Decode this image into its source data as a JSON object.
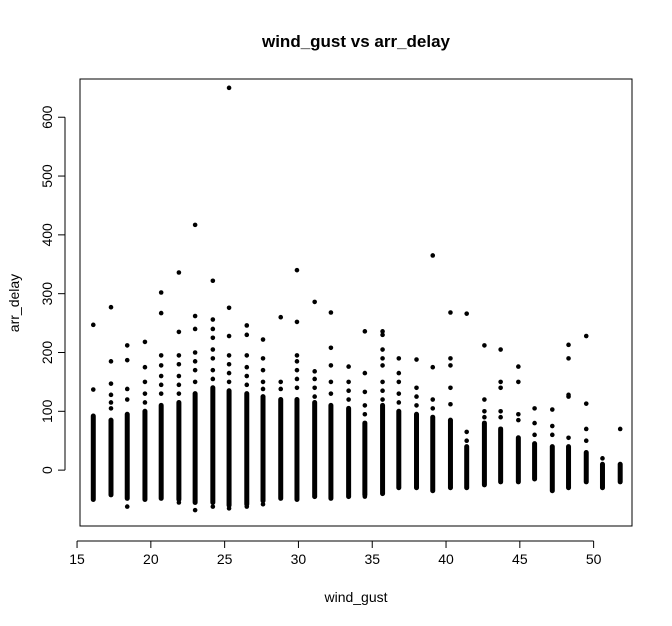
{
  "chart_data": {
    "type": "scatter",
    "title": "wind_gust vs arr_delay",
    "xlabel": "wind_gust",
    "ylabel": "arr_delay",
    "xlim": [
      15.2,
      52.6
    ],
    "ylim": [
      -95,
      665
    ],
    "x_ticks": [
      15,
      20,
      25,
      30,
      35,
      40,
      45,
      50
    ],
    "y_ticks": [
      0,
      100,
      200,
      300,
      400,
      500,
      600
    ],
    "grid": false,
    "point_color": "#000000",
    "columns": [
      {
        "x": 16.1,
        "min": -50,
        "max": 92
      },
      {
        "x": 17.3,
        "min": -42,
        "max": 85
      },
      {
        "x": 18.4,
        "min": -48,
        "max": 95
      },
      {
        "x": 19.6,
        "min": -50,
        "max": 100
      },
      {
        "x": 20.7,
        "min": -48,
        "max": 110
      },
      {
        "x": 21.9,
        "min": -50,
        "max": 115
      },
      {
        "x": 23.0,
        "min": -55,
        "max": 130
      },
      {
        "x": 24.2,
        "min": -55,
        "max": 140
      },
      {
        "x": 25.3,
        "min": -60,
        "max": 135
      },
      {
        "x": 26.5,
        "min": -58,
        "max": 130
      },
      {
        "x": 27.6,
        "min": -52,
        "max": 125
      },
      {
        "x": 28.8,
        "min": -48,
        "max": 120
      },
      {
        "x": 29.9,
        "min": -50,
        "max": 120
      },
      {
        "x": 31.1,
        "min": -45,
        "max": 115
      },
      {
        "x": 32.2,
        "min": -48,
        "max": 110
      },
      {
        "x": 33.4,
        "min": -45,
        "max": 105
      },
      {
        "x": 34.5,
        "min": -42,
        "max": 80
      },
      {
        "x": 35.7,
        "min": -40,
        "max": 110
      },
      {
        "x": 36.8,
        "min": -30,
        "max": 100
      },
      {
        "x": 38.0,
        "min": -30,
        "max": 95
      },
      {
        "x": 39.1,
        "min": -35,
        "max": 90
      },
      {
        "x": 40.3,
        "min": -30,
        "max": 85
      },
      {
        "x": 41.4,
        "min": -30,
        "max": 40
      },
      {
        "x": 42.6,
        "min": -25,
        "max": 80
      },
      {
        "x": 43.7,
        "min": -20,
        "max": 70
      },
      {
        "x": 44.9,
        "min": -20,
        "max": 55
      },
      {
        "x": 46.0,
        "min": -15,
        "max": 45
      },
      {
        "x": 47.2,
        "min": -35,
        "max": 40
      },
      {
        "x": 48.3,
        "min": -30,
        "max": 40
      },
      {
        "x": 49.5,
        "min": -20,
        "max": 30
      },
      {
        "x": 50.6,
        "min": -30,
        "max": 10
      },
      {
        "x": 51.8,
        "min": -20,
        "max": 10
      }
    ],
    "outliers": [
      {
        "x": 16.1,
        "y": 247
      },
      {
        "x": 16.1,
        "y": 137
      },
      {
        "x": 17.3,
        "y": 277
      },
      {
        "x": 17.3,
        "y": 185
      },
      {
        "x": 17.3,
        "y": 147
      },
      {
        "x": 17.3,
        "y": 128
      },
      {
        "x": 17.3,
        "y": 115
      },
      {
        "x": 17.3,
        "y": 105
      },
      {
        "x": 18.4,
        "y": 212
      },
      {
        "x": 18.4,
        "y": 187
      },
      {
        "x": 18.4,
        "y": 138
      },
      {
        "x": 18.4,
        "y": 120
      },
      {
        "x": 18.4,
        "y": -62
      },
      {
        "x": 19.6,
        "y": 218
      },
      {
        "x": 19.6,
        "y": 175
      },
      {
        "x": 19.6,
        "y": 150
      },
      {
        "x": 19.6,
        "y": 130
      },
      {
        "x": 19.6,
        "y": 115
      },
      {
        "x": 20.7,
        "y": 302
      },
      {
        "x": 20.7,
        "y": 267
      },
      {
        "x": 20.7,
        "y": 195
      },
      {
        "x": 20.7,
        "y": 178
      },
      {
        "x": 20.7,
        "y": 160
      },
      {
        "x": 20.7,
        "y": 145
      },
      {
        "x": 20.7,
        "y": 130
      },
      {
        "x": 21.9,
        "y": 336
      },
      {
        "x": 21.9,
        "y": 235
      },
      {
        "x": 21.9,
        "y": 195
      },
      {
        "x": 21.9,
        "y": 180
      },
      {
        "x": 21.9,
        "y": 160
      },
      {
        "x": 21.9,
        "y": 145
      },
      {
        "x": 21.9,
        "y": 130
      },
      {
        "x": 21.9,
        "y": -55
      },
      {
        "x": 23.0,
        "y": 417
      },
      {
        "x": 23.0,
        "y": 262
      },
      {
        "x": 23.0,
        "y": 240
      },
      {
        "x": 23.0,
        "y": 200
      },
      {
        "x": 23.0,
        "y": 185
      },
      {
        "x": 23.0,
        "y": 170
      },
      {
        "x": 23.0,
        "y": 150
      },
      {
        "x": 23.0,
        "y": -68
      },
      {
        "x": 24.2,
        "y": 322
      },
      {
        "x": 24.2,
        "y": 256
      },
      {
        "x": 24.2,
        "y": 240
      },
      {
        "x": 24.2,
        "y": 225
      },
      {
        "x": 24.2,
        "y": 205
      },
      {
        "x": 24.2,
        "y": 190
      },
      {
        "x": 24.2,
        "y": 170
      },
      {
        "x": 24.2,
        "y": 155
      },
      {
        "x": 24.2,
        "y": -62
      },
      {
        "x": 25.3,
        "y": 650
      },
      {
        "x": 25.3,
        "y": 276
      },
      {
        "x": 25.3,
        "y": 228
      },
      {
        "x": 25.3,
        "y": 195
      },
      {
        "x": 25.3,
        "y": 180
      },
      {
        "x": 25.3,
        "y": 165
      },
      {
        "x": 25.3,
        "y": 150
      },
      {
        "x": 25.3,
        "y": -65
      },
      {
        "x": 26.5,
        "y": 246
      },
      {
        "x": 26.5,
        "y": 230
      },
      {
        "x": 26.5,
        "y": 195
      },
      {
        "x": 26.5,
        "y": 175
      },
      {
        "x": 26.5,
        "y": 160
      },
      {
        "x": 26.5,
        "y": 145
      },
      {
        "x": 26.5,
        "y": -62
      },
      {
        "x": 27.6,
        "y": 222
      },
      {
        "x": 27.6,
        "y": 190
      },
      {
        "x": 27.6,
        "y": 170
      },
      {
        "x": 27.6,
        "y": 150
      },
      {
        "x": 27.6,
        "y": 138
      },
      {
        "x": 27.6,
        "y": -58
      },
      {
        "x": 28.8,
        "y": 260
      },
      {
        "x": 28.8,
        "y": 150
      },
      {
        "x": 28.8,
        "y": 138
      },
      {
        "x": 29.9,
        "y": 340
      },
      {
        "x": 29.9,
        "y": 252
      },
      {
        "x": 29.9,
        "y": 195
      },
      {
        "x": 29.9,
        "y": 185
      },
      {
        "x": 29.9,
        "y": 170
      },
      {
        "x": 29.9,
        "y": 155
      },
      {
        "x": 29.9,
        "y": 140
      },
      {
        "x": 31.1,
        "y": 286
      },
      {
        "x": 31.1,
        "y": 168
      },
      {
        "x": 31.1,
        "y": 155
      },
      {
        "x": 31.1,
        "y": 140
      },
      {
        "x": 31.1,
        "y": 125
      },
      {
        "x": 32.2,
        "y": 268
      },
      {
        "x": 32.2,
        "y": 208
      },
      {
        "x": 32.2,
        "y": 178
      },
      {
        "x": 32.2,
        "y": 150
      },
      {
        "x": 32.2,
        "y": 130
      },
      {
        "x": 33.4,
        "y": 176
      },
      {
        "x": 33.4,
        "y": 150
      },
      {
        "x": 33.4,
        "y": 135
      },
      {
        "x": 33.4,
        "y": 120
      },
      {
        "x": 34.5,
        "y": 236
      },
      {
        "x": 34.5,
        "y": 165
      },
      {
        "x": 34.5,
        "y": 133
      },
      {
        "x": 34.5,
        "y": 110
      },
      {
        "x": 34.5,
        "y": 95
      },
      {
        "x": 34.5,
        "y": -45
      },
      {
        "x": 35.7,
        "y": 236
      },
      {
        "x": 35.7,
        "y": 230
      },
      {
        "x": 35.7,
        "y": 205
      },
      {
        "x": 35.7,
        "y": 190
      },
      {
        "x": 35.7,
        "y": 178
      },
      {
        "x": 35.7,
        "y": 150
      },
      {
        "x": 35.7,
        "y": 135
      },
      {
        "x": 35.7,
        "y": 120
      },
      {
        "x": 36.8,
        "y": 190
      },
      {
        "x": 36.8,
        "y": 165
      },
      {
        "x": 36.8,
        "y": 150
      },
      {
        "x": 36.8,
        "y": 130
      },
      {
        "x": 36.8,
        "y": 115
      },
      {
        "x": 38.0,
        "y": 188
      },
      {
        "x": 38.0,
        "y": 140
      },
      {
        "x": 38.0,
        "y": 125
      },
      {
        "x": 38.0,
        "y": 110
      },
      {
        "x": 39.1,
        "y": 365
      },
      {
        "x": 39.1,
        "y": 175
      },
      {
        "x": 39.1,
        "y": 120
      },
      {
        "x": 39.1,
        "y": 105
      },
      {
        "x": 40.3,
        "y": 268
      },
      {
        "x": 40.3,
        "y": 190
      },
      {
        "x": 40.3,
        "y": 178
      },
      {
        "x": 40.3,
        "y": 140
      },
      {
        "x": 40.3,
        "y": 112
      },
      {
        "x": 41.4,
        "y": 266
      },
      {
        "x": 41.4,
        "y": 65
      },
      {
        "x": 41.4,
        "y": 50
      },
      {
        "x": 42.6,
        "y": 212
      },
      {
        "x": 42.6,
        "y": 120
      },
      {
        "x": 42.6,
        "y": 100
      },
      {
        "x": 42.6,
        "y": 90
      },
      {
        "x": 43.7,
        "y": 205
      },
      {
        "x": 43.7,
        "y": 150
      },
      {
        "x": 43.7,
        "y": 140
      },
      {
        "x": 43.7,
        "y": 100
      },
      {
        "x": 43.7,
        "y": 90
      },
      {
        "x": 44.9,
        "y": 176
      },
      {
        "x": 44.9,
        "y": 150
      },
      {
        "x": 44.9,
        "y": 95
      },
      {
        "x": 44.9,
        "y": 85
      },
      {
        "x": 46.0,
        "y": 105
      },
      {
        "x": 46.0,
        "y": 80
      },
      {
        "x": 46.0,
        "y": 60
      },
      {
        "x": 47.2,
        "y": 103
      },
      {
        "x": 47.2,
        "y": 75
      },
      {
        "x": 47.2,
        "y": 60
      },
      {
        "x": 48.3,
        "y": 213
      },
      {
        "x": 48.3,
        "y": 190
      },
      {
        "x": 48.3,
        "y": 128
      },
      {
        "x": 48.3,
        "y": 125
      },
      {
        "x": 48.3,
        "y": 55
      },
      {
        "x": 49.5,
        "y": 228
      },
      {
        "x": 49.5,
        "y": 113
      },
      {
        "x": 49.5,
        "y": 70
      },
      {
        "x": 49.5,
        "y": 50
      },
      {
        "x": 50.6,
        "y": 20
      },
      {
        "x": 51.8,
        "y": 70
      }
    ]
  }
}
